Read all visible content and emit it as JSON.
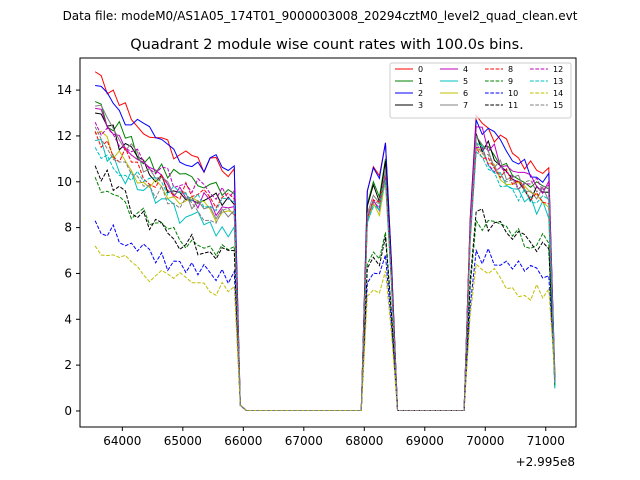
{
  "header": {
    "data_file_label": "Data file: modeM0/AS1A05_174T01_9000003008_20294cztM0_level2_quad_clean.evt"
  },
  "chart_data": {
    "type": "line",
    "title": "Quadrant 2 module wise count rates with 100.0s bins.",
    "xlabel": "",
    "ylabel": "",
    "x_offset_label": "+2.995e8",
    "xlim": [
      63300,
      71500
    ],
    "ylim": [
      -0.7,
      15.4
    ],
    "x_ticks": [
      64000,
      65000,
      66000,
      67000,
      68000,
      69000,
      70000,
      71000
    ],
    "x_tick_labels": [
      "64000",
      "65000",
      "66000",
      "67000",
      "68000",
      "69000",
      "70000",
      "71000"
    ],
    "y_ticks": [
      0,
      2,
      4,
      6,
      8,
      10,
      12,
      14
    ],
    "y_tick_labels": [
      "0",
      "2",
      "4",
      "6",
      "8",
      "10",
      "12",
      "14"
    ],
    "legend_position": "top-right",
    "segments": [
      {
        "start": 63550,
        "end": 65850
      },
      {
        "start": 68000,
        "end": 68450
      },
      {
        "start": 69650,
        "end": 71150
      }
    ],
    "series": [
      {
        "name": "0",
        "color": "#ff0000",
        "dashed": false,
        "levels": [
          14.8,
          10.6,
          11.7,
          12.9,
          10.5
        ]
      },
      {
        "name": "1",
        "color": "#008000",
        "dashed": false,
        "levels": [
          13.5,
          9.5,
          11.0,
          12.0,
          9.5
        ]
      },
      {
        "name": "2",
        "color": "#0000ff",
        "dashed": false,
        "levels": [
          14.2,
          10.7,
          11.7,
          12.7,
          10.1
        ]
      },
      {
        "name": "3",
        "color": "#000000",
        "dashed": false,
        "levels": [
          13.0,
          9.0,
          10.9,
          12.1,
          9.2
        ]
      },
      {
        "name": "4",
        "color": "#bf00bf",
        "dashed": false,
        "levels": [
          13.2,
          8.9,
          10.2,
          12.4,
          9.6
        ]
      },
      {
        "name": "5",
        "color": "#00bfbf",
        "dashed": false,
        "levels": [
          11.8,
          8.0,
          10.0,
          11.7,
          8.8
        ]
      },
      {
        "name": "6",
        "color": "#bfbf00",
        "dashed": false,
        "levels": [
          12.1,
          8.6,
          10.1,
          11.5,
          9.2
        ]
      },
      {
        "name": "7",
        "color": "#808080",
        "dashed": false,
        "levels": [
          13.3,
          8.7,
          10.5,
          12.0,
          9.4
        ]
      },
      {
        "name": "8",
        "color": "#ff0000",
        "dashed": true,
        "levels": [
          12.2,
          9.2,
          10.3,
          11.5,
          9.2
        ]
      },
      {
        "name": "9",
        "color": "#008000",
        "dashed": true,
        "levels": [
          10.2,
          7.1,
          7.8,
          8.3,
          7.4
        ]
      },
      {
        "name": "10",
        "color": "#0000ff",
        "dashed": true,
        "levels": [
          8.3,
          6.0,
          6.8,
          7.0,
          5.9
        ]
      },
      {
        "name": "11",
        "color": "#000000",
        "dashed": true,
        "levels": [
          10.7,
          6.9,
          7.6,
          8.7,
          7.0
        ]
      },
      {
        "name": "12",
        "color": "#bf00bf",
        "dashed": true,
        "levels": [
          12.6,
          9.5,
          10.3,
          11.5,
          9.7
        ]
      },
      {
        "name": "13",
        "color": "#00bfbf",
        "dashed": true,
        "levels": [
          11.5,
          9.0,
          10.1,
          11.3,
          9.0
        ]
      },
      {
        "name": "14",
        "color": "#bfbf00",
        "dashed": true,
        "levels": [
          7.2,
          5.3,
          6.1,
          6.4,
          5.0
        ]
      },
      {
        "name": "15",
        "color": "#808080",
        "dashed": true,
        "levels": [
          12.4,
          8.4,
          10.4,
          11.7,
          9.4
        ]
      }
    ]
  }
}
